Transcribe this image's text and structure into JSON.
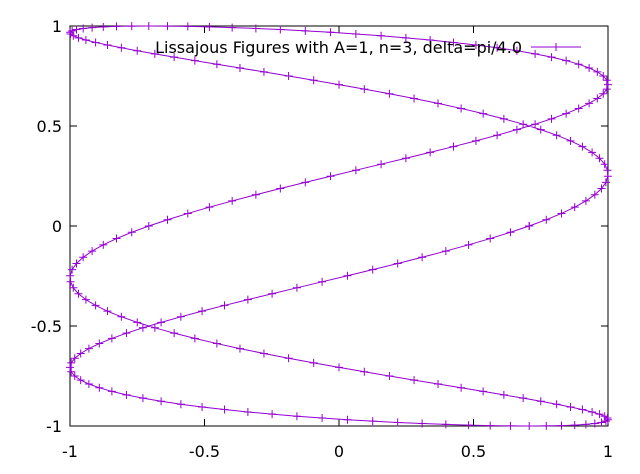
{
  "chart_data": {
    "type": "line",
    "title": "",
    "xlabel": "",
    "ylabel": "",
    "xlim": [
      -1,
      1
    ],
    "ylim": [
      -1,
      1
    ],
    "grid": false,
    "legend_placement": "top-right",
    "x_ticks": [
      -1,
      -0.5,
      0,
      0.5,
      1
    ],
    "x_tick_labels": [
      "-1",
      "-0.5",
      "0",
      "0.5",
      "1"
    ],
    "y_ticks": [
      -1,
      -0.5,
      0,
      0.5,
      1
    ],
    "y_tick_labels": [
      "-1",
      "-0.5",
      "0",
      "0.5",
      "1"
    ],
    "series": [
      {
        "name": "Lissajous Figures with A=1, n=3, delta=pi/4.0",
        "color": "#9400d3",
        "marker": "plus",
        "parametric": "x = A*sin(n*t + delta), y = sin(t)",
        "A": 1,
        "n": 3,
        "delta": 0.785398,
        "t_range": [
          0,
          6.283185
        ],
        "samples": 201
      }
    ]
  }
}
